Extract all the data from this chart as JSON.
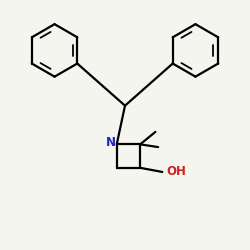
{
  "bg_color": "#f5f5f0",
  "bond_color": "#000000",
  "N_color": "#2020cc",
  "O_color": "#cc2020",
  "bond_width": 1.6,
  "font_size_atom": 8.5,
  "figsize": [
    2.5,
    2.5
  ],
  "dpi": 100,
  "xlim": [
    -4.5,
    4.5
  ],
  "ylim": [
    -4.0,
    5.0
  ]
}
